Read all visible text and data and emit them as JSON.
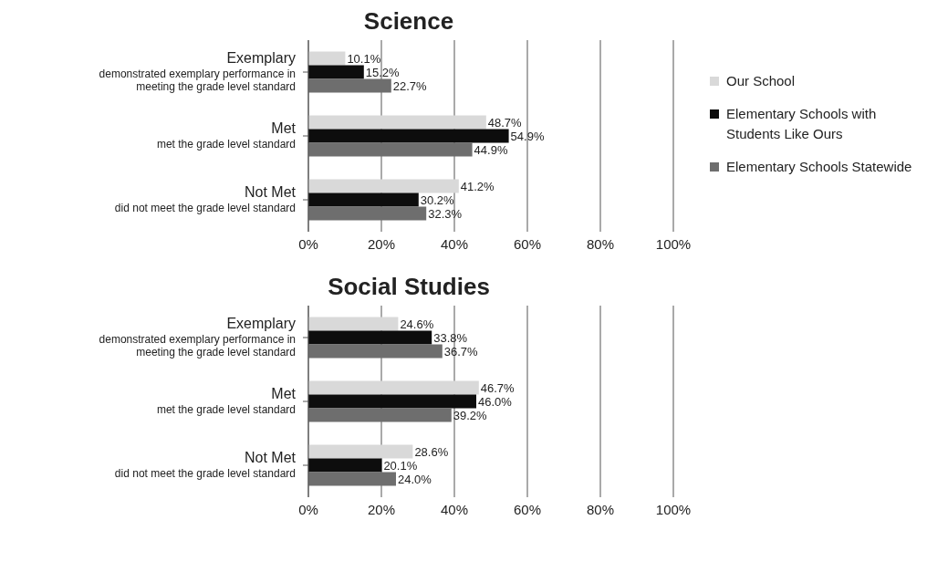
{
  "chart_data": [
    {
      "type": "bar",
      "orientation": "horizontal",
      "title": "Science",
      "categories": [
        "Exemplary\ndemonstrated exemplary performance in\nmeeting the grade level standard",
        "Met\nmet the grade level standard",
        "Not Met\ndid not meet the grade level standard"
      ],
      "series": [
        {
          "name": "Our School",
          "color": "#d9d9d9",
          "values": [
            10.1,
            48.7,
            41.2
          ],
          "value_labels": [
            "10.1%",
            "48.7%",
            "41.2%"
          ]
        },
        {
          "name": "Elementary Schools with Students Like Ours",
          "color": "#0d0d0d",
          "values": [
            15.2,
            54.9,
            30.2
          ],
          "value_labels": [
            "15.2%",
            "54.9%",
            "30.2%"
          ]
        },
        {
          "name": "Elementary Schools Statewide",
          "color": "#6e6e6e",
          "values": [
            22.7,
            44.9,
            32.3
          ],
          "value_labels": [
            "22.7%",
            "44.9%",
            "32.3%"
          ]
        }
      ],
      "xlim": [
        0,
        100
      ],
      "xticks": [
        {
          "value": 0,
          "label": "0%"
        },
        {
          "value": 20,
          "label": "20%"
        },
        {
          "value": 40,
          "label": "40%"
        },
        {
          "value": 60,
          "label": "60%"
        },
        {
          "value": 80,
          "label": "80%"
        },
        {
          "value": 100,
          "label": "100%"
        }
      ],
      "grid": "x",
      "legend": "right"
    },
    {
      "type": "bar",
      "orientation": "horizontal",
      "title": "Social Studies",
      "categories": [
        "Exemplary\ndemonstrated exemplary performance in\nmeeting the grade level standard",
        "Met\nmet the grade level standard",
        "Not Met\ndid not meet the grade level standard"
      ],
      "series": [
        {
          "color": "#d9d9d9",
          "values": [
            24.6,
            46.7,
            28.6
          ],
          "value_labels": [
            "24.6%",
            "46.7%",
            "28.6%"
          ]
        },
        {
          "color": "#0d0d0d",
          "values": [
            33.8,
            46.0,
            20.1
          ],
          "value_labels": [
            "33.8%",
            "46.0%",
            "20.1%"
          ]
        },
        {
          "color": "#6e6e6e",
          "values": [
            36.7,
            39.2,
            24.0
          ],
          "value_labels": [
            "36.7%",
            "39.2%",
            "24.0%"
          ]
        }
      ],
      "xlim": [
        0,
        100
      ],
      "xticks": [
        {
          "value": 0,
          "label": "0%"
        },
        {
          "value": 20,
          "label": "20%"
        },
        {
          "value": 40,
          "label": "40%"
        },
        {
          "value": 60,
          "label": "60%"
        },
        {
          "value": 80,
          "label": "80%"
        },
        {
          "value": 100,
          "label": "100%"
        }
      ],
      "grid": "x"
    }
  ]
}
